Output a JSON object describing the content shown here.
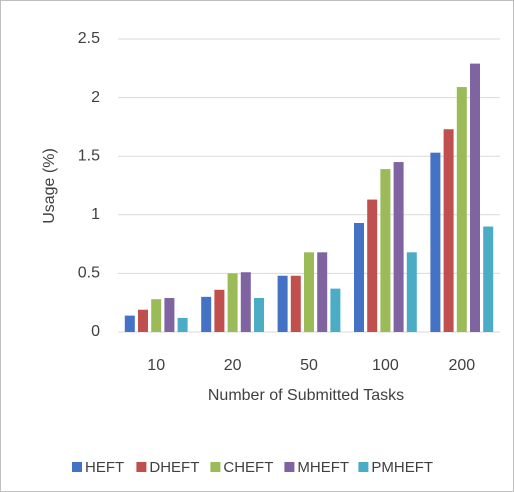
{
  "chart_data": {
    "type": "bar",
    "x_label": "Number of Submitted Tasks",
    "y_label": "Usage (%)",
    "categories": [
      "10",
      "20",
      "50",
      "100",
      "200"
    ],
    "series": [
      {
        "name": "HEFT",
        "color": "#4472c4",
        "values": [
          0.14,
          0.3,
          0.48,
          0.93,
          1.53
        ]
      },
      {
        "name": "DHEFT",
        "color": "#c0504d",
        "values": [
          0.19,
          0.36,
          0.48,
          1.13,
          1.73
        ]
      },
      {
        "name": "CHEFT",
        "color": "#9bbb59",
        "values": [
          0.28,
          0.5,
          0.68,
          1.39,
          2.09
        ]
      },
      {
        "name": "MHEFT",
        "color": "#8064a2",
        "values": [
          0.29,
          0.51,
          0.68,
          1.45,
          2.29
        ]
      },
      {
        "name": "PMHEFT",
        "color": "#4bacc6",
        "values": [
          0.12,
          0.29,
          0.37,
          0.68,
          0.9
        ]
      }
    ],
    "ylim": [
      0,
      2.5
    ],
    "yticks": [
      0,
      0.5,
      1,
      1.5,
      2,
      2.5
    ],
    "grid": true,
    "legend": "bottom"
  }
}
